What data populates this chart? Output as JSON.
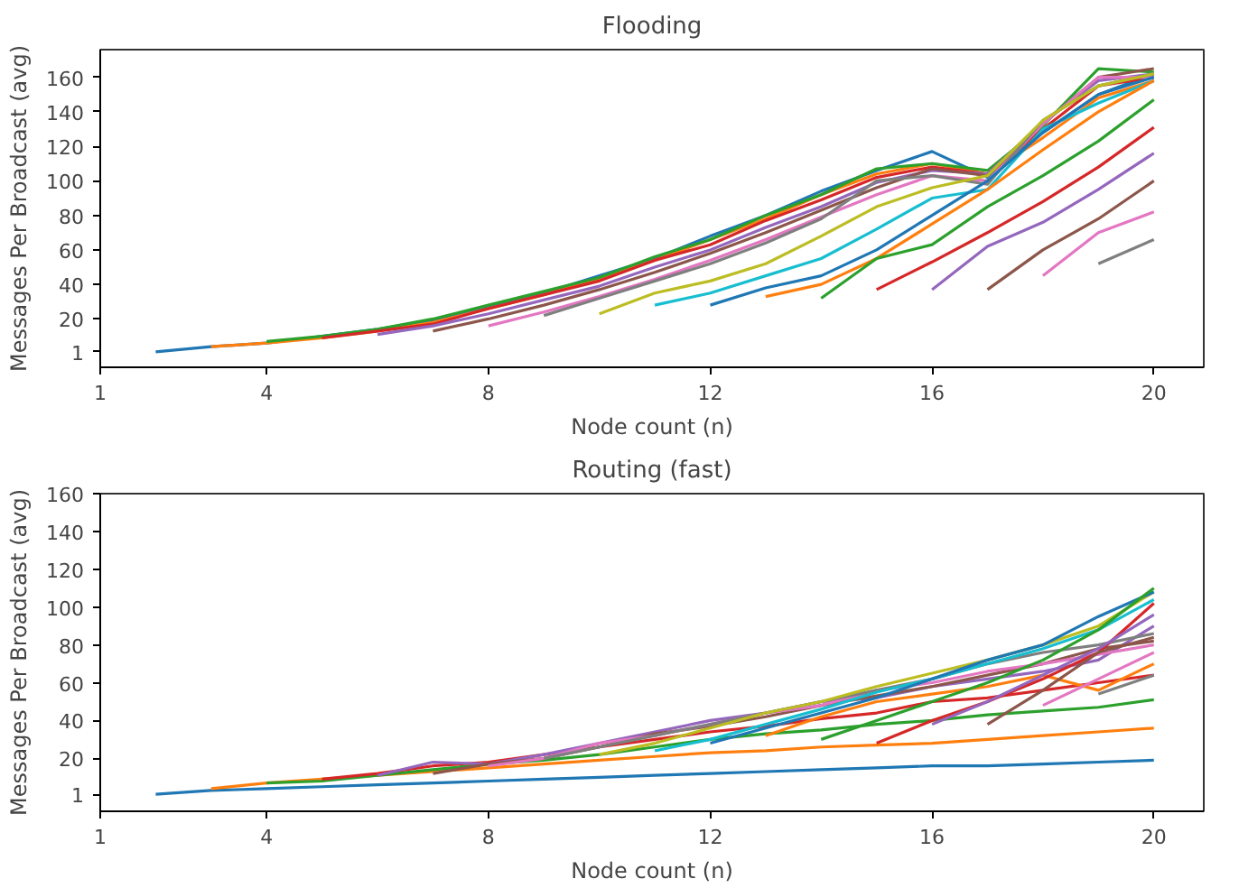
{
  "chart_data": [
    {
      "type": "line",
      "title": "Flooding",
      "xlabel": "Node count (n)",
      "ylabel": "Messages Per Broadcast (avg)",
      "xlim": [
        1,
        20.9
      ],
      "ylim": [
        -8,
        176
      ],
      "xticks": [
        1,
        4,
        8,
        12,
        16,
        20
      ],
      "yticks": [
        1,
        20,
        40,
        60,
        80,
        100,
        120,
        140,
        160
      ],
      "grid": false,
      "series": [
        {
          "color": "#1f77b4",
          "x": [
            2,
            3,
            4,
            5,
            6,
            7,
            8,
            9,
            10,
            11,
            12,
            13,
            14,
            15,
            16,
            17,
            18,
            19,
            20
          ],
          "values": [
            1,
            4,
            6,
            10,
            14,
            19,
            27,
            35,
            45,
            55,
            68,
            80,
            94,
            106,
            117,
            102,
            128,
            150,
            162
          ]
        },
        {
          "color": "#ff7f0e",
          "x": [
            3,
            4,
            5,
            6,
            7,
            8,
            9,
            10,
            11,
            12,
            13,
            14,
            15,
            16,
            17,
            18,
            19,
            20
          ],
          "values": [
            4,
            6,
            9,
            13,
            18,
            26,
            34,
            43,
            54,
            66,
            78,
            92,
            104,
            110,
            104,
            125,
            148,
            158
          ]
        },
        {
          "color": "#2ca02c",
          "x": [
            4,
            5,
            6,
            7,
            8,
            9,
            10,
            11,
            12,
            13,
            14,
            15,
            16,
            17,
            18,
            19,
            20
          ],
          "values": [
            7,
            10,
            14,
            20,
            28,
            36,
            44,
            56,
            66,
            80,
            92,
            107,
            110,
            106,
            132,
            165,
            163
          ]
        },
        {
          "color": "#d62728",
          "x": [
            5,
            6,
            7,
            8,
            9,
            10,
            11,
            12,
            13,
            14,
            15,
            16,
            17,
            18,
            19,
            20
          ],
          "values": [
            9,
            13,
            17,
            26,
            34,
            42,
            54,
            63,
            77,
            89,
            102,
            108,
            104,
            130,
            155,
            160
          ]
        },
        {
          "color": "#9467bd",
          "x": [
            6,
            7,
            8,
            9,
            10,
            11,
            12,
            13,
            14,
            15,
            16,
            17,
            18,
            19,
            20
          ],
          "values": [
            11,
            16,
            23,
            31,
            39,
            50,
            60,
            73,
            85,
            99,
            106,
            104,
            134,
            158,
            162
          ]
        },
        {
          "color": "#8c564b",
          "x": [
            7,
            8,
            9,
            10,
            11,
            12,
            13,
            14,
            15,
            16,
            17,
            18,
            19,
            20
          ],
          "values": [
            13,
            20,
            28,
            37,
            47,
            58,
            70,
            83,
            96,
            107,
            103,
            133,
            160,
            165
          ]
        },
        {
          "color": "#e377c2",
          "x": [
            8,
            9,
            10,
            11,
            12,
            13,
            14,
            15,
            16,
            17,
            18,
            19,
            20
          ],
          "values": [
            16,
            24,
            33,
            43,
            54,
            66,
            79,
            92,
            103,
            100,
            133,
            160,
            160
          ]
        },
        {
          "color": "#7f7f7f",
          "x": [
            9,
            10,
            11,
            12,
            13,
            14,
            15,
            16,
            17,
            18,
            19,
            20
          ],
          "values": [
            22,
            32,
            42,
            52,
            64,
            78,
            100,
            103,
            98,
            135,
            155,
            162
          ]
        },
        {
          "color": "#bcbd22",
          "x": [
            10,
            11,
            12,
            13,
            14,
            15,
            16,
            17,
            18,
            19,
            20
          ],
          "values": [
            23,
            35,
            42,
            52,
            68,
            85,
            96,
            103,
            135,
            155,
            162
          ]
        },
        {
          "color": "#17becf",
          "x": [
            11,
            12,
            13,
            14,
            15,
            16,
            17,
            18,
            19,
            20
          ],
          "values": [
            28,
            35,
            45,
            55,
            72,
            90,
            95,
            130,
            145,
            158
          ]
        },
        {
          "color": "#1f77b4",
          "x": [
            12,
            13,
            14,
            15,
            16,
            17,
            18,
            19,
            20
          ],
          "values": [
            28,
            38,
            45,
            60,
            80,
            100,
            128,
            150,
            160
          ]
        },
        {
          "color": "#ff7f0e",
          "x": [
            13,
            14,
            15,
            16,
            17,
            18,
            19,
            20
          ],
          "values": [
            33,
            40,
            55,
            75,
            95,
            118,
            140,
            158
          ]
        },
        {
          "color": "#2ca02c",
          "x": [
            14,
            15,
            16,
            17,
            18,
            19,
            20
          ],
          "values": [
            32,
            55,
            63,
            85,
            103,
            123,
            147
          ]
        },
        {
          "color": "#d62728",
          "x": [
            15,
            16,
            17,
            18,
            19,
            20
          ],
          "values": [
            37,
            53,
            70,
            88,
            108,
            131
          ]
        },
        {
          "color": "#9467bd",
          "x": [
            16,
            17,
            18,
            19,
            20
          ],
          "values": [
            37,
            62,
            76,
            95,
            116
          ]
        },
        {
          "color": "#8c564b",
          "x": [
            17,
            18,
            19,
            20
          ],
          "values": [
            37,
            60,
            78,
            100
          ]
        },
        {
          "color": "#e377c2",
          "x": [
            18,
            19,
            20
          ],
          "values": [
            45,
            70,
            82
          ]
        },
        {
          "color": "#7f7f7f",
          "x": [
            19,
            20
          ],
          "values": [
            52,
            66
          ]
        }
      ]
    },
    {
      "type": "line",
      "title": "Routing (fast)",
      "xlabel": "Node count (n)",
      "ylabel": "Messages Per Broadcast (avg)",
      "xlim": [
        1,
        20.9
      ],
      "ylim": [
        -8,
        160
      ],
      "xticks": [
        1,
        4,
        8,
        12,
        16,
        20
      ],
      "yticks": [
        1,
        20,
        40,
        60,
        80,
        100,
        120,
        140,
        160
      ],
      "grid": false,
      "series": [
        {
          "color": "#1f77b4",
          "x": [
            2,
            3,
            4,
            5,
            6,
            7,
            8,
            9,
            10,
            11,
            12,
            13,
            14,
            15,
            16,
            17,
            18,
            19,
            20
          ],
          "values": [
            1,
            3,
            4,
            5,
            6,
            7,
            8,
            9,
            10,
            11,
            12,
            13,
            14,
            15,
            16,
            16,
            17,
            18,
            19
          ]
        },
        {
          "color": "#ff7f0e",
          "x": [
            3,
            4,
            5,
            6,
            7,
            8,
            9,
            10,
            11,
            12,
            13,
            14,
            15,
            16,
            17,
            18,
            19,
            20
          ],
          "values": [
            4,
            7,
            9,
            11,
            13,
            15,
            17,
            19,
            21,
            23,
            24,
            26,
            27,
            28,
            30,
            32,
            34,
            36
          ]
        },
        {
          "color": "#2ca02c",
          "x": [
            4,
            5,
            6,
            7,
            8,
            9,
            10,
            11,
            12,
            13,
            14,
            15,
            16,
            17,
            18,
            19,
            20
          ],
          "values": [
            7,
            8,
            11,
            14,
            17,
            19,
            22,
            26,
            30,
            33,
            35,
            38,
            40,
            43,
            45,
            47,
            51
          ]
        },
        {
          "color": "#d62728",
          "x": [
            5,
            6,
            7,
            8,
            9,
            10,
            11,
            12,
            13,
            14,
            15,
            16,
            17,
            18,
            19,
            20
          ],
          "values": [
            9,
            12,
            16,
            18,
            22,
            26,
            30,
            34,
            37,
            41,
            44,
            50,
            52,
            56,
            60,
            64
          ]
        },
        {
          "color": "#9467bd",
          "x": [
            6,
            7,
            8,
            9,
            10,
            11,
            12,
            13,
            14,
            15,
            16,
            17,
            18,
            19,
            20
          ],
          "values": [
            11,
            18,
            17,
            22,
            28,
            34,
            40,
            44,
            50,
            52,
            58,
            62,
            66,
            72,
            90
          ]
        },
        {
          "color": "#8c564b",
          "x": [
            7,
            8,
            9,
            10,
            11,
            12,
            13,
            14,
            15,
            16,
            17,
            18,
            19,
            20
          ],
          "values": [
            12,
            17,
            20,
            26,
            33,
            37,
            42,
            48,
            53,
            58,
            64,
            70,
            78,
            82
          ]
        },
        {
          "color": "#e377c2",
          "x": [
            8,
            9,
            10,
            11,
            12,
            13,
            14,
            15,
            16,
            17,
            18,
            19,
            20
          ],
          "values": [
            16,
            20,
            28,
            32,
            38,
            44,
            48,
            56,
            60,
            66,
            70,
            75,
            80
          ]
        },
        {
          "color": "#7f7f7f",
          "x": [
            9,
            10,
            11,
            12,
            13,
            14,
            15,
            16,
            17,
            18,
            19,
            20
          ],
          "values": [
            20,
            26,
            32,
            38,
            44,
            50,
            56,
            62,
            70,
            76,
            80,
            86
          ]
        },
        {
          "color": "#bcbd22",
          "x": [
            10,
            11,
            12,
            13,
            14,
            15,
            16,
            17,
            18,
            19,
            20
          ],
          "values": [
            22,
            28,
            36,
            44,
            50,
            58,
            65,
            72,
            80,
            90,
            108
          ]
        },
        {
          "color": "#17becf",
          "x": [
            11,
            12,
            13,
            14,
            15,
            16,
            17,
            18,
            19,
            20
          ],
          "values": [
            24,
            30,
            38,
            46,
            55,
            62,
            70,
            78,
            88,
            104
          ]
        },
        {
          "color": "#1f77b4",
          "x": [
            12,
            13,
            14,
            15,
            16,
            17,
            18,
            19,
            20
          ],
          "values": [
            28,
            36,
            44,
            52,
            62,
            72,
            80,
            95,
            108
          ]
        },
        {
          "color": "#ff7f0e",
          "x": [
            13,
            14,
            15,
            16,
            17,
            18,
            19,
            20
          ],
          "values": [
            32,
            42,
            50,
            54,
            58,
            64,
            56,
            70
          ]
        },
        {
          "color": "#2ca02c",
          "x": [
            14,
            15,
            16,
            17,
            18,
            19,
            20
          ],
          "values": [
            30,
            40,
            50,
            60,
            72,
            88,
            110
          ]
        },
        {
          "color": "#d62728",
          "x": [
            15,
            16,
            17,
            18,
            19,
            20
          ],
          "values": [
            28,
            40,
            50,
            62,
            76,
            102
          ]
        },
        {
          "color": "#9467bd",
          "x": [
            16,
            17,
            18,
            19,
            20
          ],
          "values": [
            38,
            50,
            64,
            78,
            96
          ]
        },
        {
          "color": "#8c564b",
          "x": [
            17,
            18,
            19,
            20
          ],
          "values": [
            38,
            56,
            76,
            84
          ]
        },
        {
          "color": "#e377c2",
          "x": [
            18,
            19,
            20
          ],
          "values": [
            48,
            62,
            76
          ]
        },
        {
          "color": "#7f7f7f",
          "x": [
            19,
            20
          ],
          "values": [
            54,
            64
          ]
        }
      ]
    }
  ]
}
